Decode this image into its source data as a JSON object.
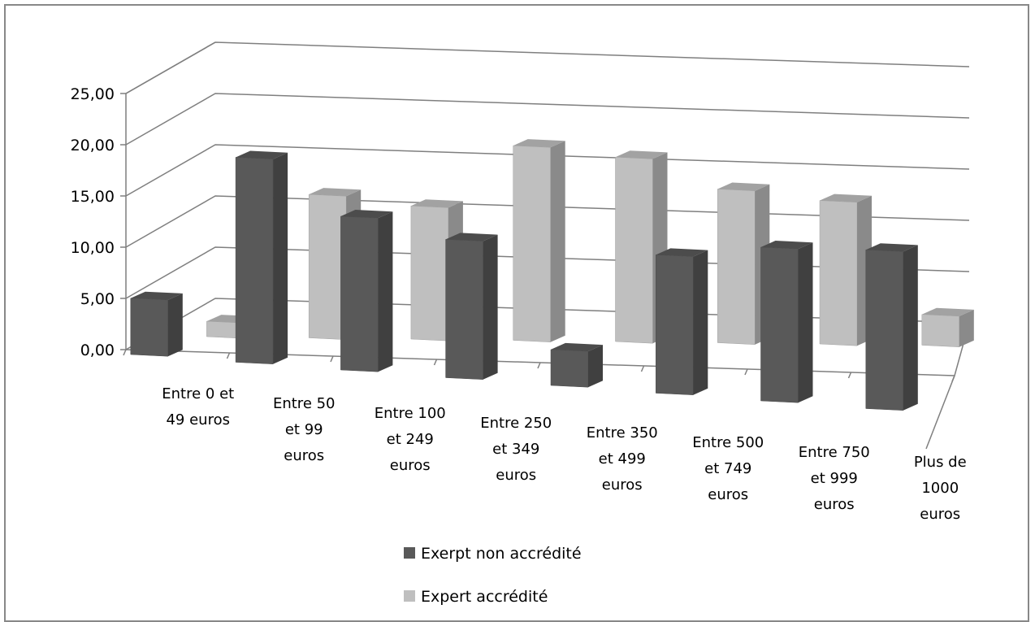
{
  "chart_data": {
    "type": "bar",
    "subtype": "3d-clustered-column",
    "title": "",
    "xlabel": "",
    "ylabel": "",
    "ylim": [
      0,
      25
    ],
    "yticks": [
      "0,00",
      "5,00",
      "10,00",
      "15,00",
      "20,00",
      "25,00"
    ],
    "grid": true,
    "legend_position": "bottom",
    "categories": [
      [
        "Entre 0 et",
        "49 euros"
      ],
      [
        "Entre 50",
        "et 99",
        "euros"
      ],
      [
        "Entre 100",
        "et 249",
        "euros"
      ],
      [
        "Entre 250",
        "et 349",
        "euros"
      ],
      [
        "Entre 350",
        "et 499",
        "euros"
      ],
      [
        "Entre 500",
        "et 749",
        "euros"
      ],
      [
        "Entre 750",
        "et 999",
        "euros"
      ],
      [
        "Plus de",
        "1000",
        "euros"
      ]
    ],
    "series": [
      {
        "name": "Exerpt non accrédité",
        "color": "#595959",
        "values": [
          5.5,
          20.0,
          15.0,
          13.5,
          3.5,
          13.5,
          15.0,
          15.5
        ]
      },
      {
        "name": "Expert accrédité",
        "color": "#bfbfbf",
        "values": [
          1.5,
          14.0,
          13.0,
          19.0,
          18.0,
          15.0,
          14.0,
          3.0
        ]
      }
    ]
  }
}
